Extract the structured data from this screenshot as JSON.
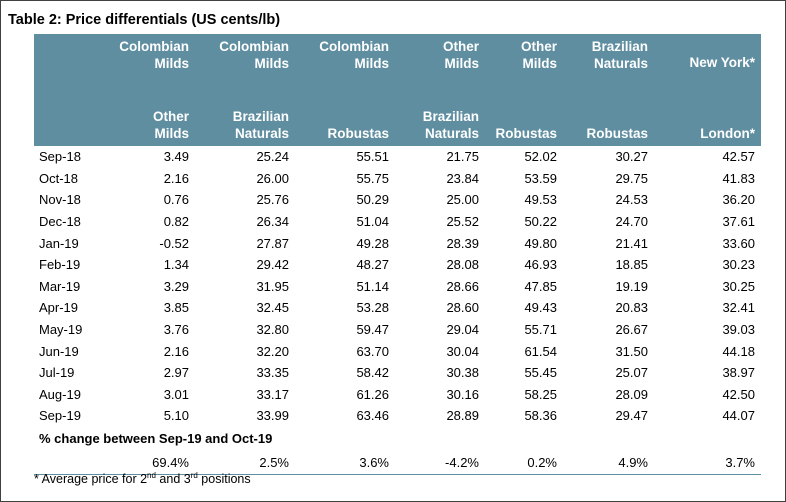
{
  "title": "Table 2: Price differentials (US cents/lb)",
  "header_top": [
    "",
    "Colombian Milds",
    "Colombian Milds",
    "Colombian Milds",
    "Other Milds",
    "Other Milds",
    "Brazilian Naturals",
    "New York*"
  ],
  "header_top_lines": [
    [
      "",
      ""
    ],
    [
      "Colombian",
      "Milds"
    ],
    [
      "Colombian",
      "Milds"
    ],
    [
      "Colombian",
      "Milds"
    ],
    [
      "Other",
      "Milds"
    ],
    [
      "Other",
      "Milds"
    ],
    [
      "Brazilian",
      "Naturals"
    ],
    [
      "New York*",
      ""
    ]
  ],
  "header_bottom_lines": [
    [
      "",
      ""
    ],
    [
      "Other",
      "Milds"
    ],
    [
      "Brazilian",
      "Naturals"
    ],
    [
      "",
      "Robustas"
    ],
    [
      "Brazilian",
      "Naturals"
    ],
    [
      "",
      "Robustas"
    ],
    [
      "",
      "Robustas"
    ],
    [
      "",
      "London*"
    ]
  ],
  "rows": [
    {
      "month": "Sep-18",
      "values": [
        "3.49",
        "25.24",
        "55.51",
        "21.75",
        "52.02",
        "30.27",
        "42.57"
      ]
    },
    {
      "month": "Oct-18",
      "values": [
        "2.16",
        "26.00",
        "55.75",
        "23.84",
        "53.59",
        "29.75",
        "41.83"
      ]
    },
    {
      "month": "Nov-18",
      "values": [
        "0.76",
        "25.76",
        "50.29",
        "25.00",
        "49.53",
        "24.53",
        "36.20"
      ]
    },
    {
      "month": "Dec-18",
      "values": [
        "0.82",
        "26.34",
        "51.04",
        "25.52",
        "50.22",
        "24.70",
        "37.61"
      ]
    },
    {
      "month": "Jan-19",
      "values": [
        "-0.52",
        "27.87",
        "49.28",
        "28.39",
        "49.80",
        "21.41",
        "33.60"
      ]
    },
    {
      "month": "Feb-19",
      "values": [
        "1.34",
        "29.42",
        "48.27",
        "28.08",
        "46.93",
        "18.85",
        "30.23"
      ]
    },
    {
      "month": "Mar-19",
      "values": [
        "3.29",
        "31.95",
        "51.14",
        "28.66",
        "47.85",
        "19.19",
        "30.25"
      ]
    },
    {
      "month": "Apr-19",
      "values": [
        "3.85",
        "32.45",
        "53.28",
        "28.60",
        "49.43",
        "20.83",
        "32.41"
      ]
    },
    {
      "month": "May-19",
      "values": [
        "3.76",
        "32.80",
        "59.47",
        "29.04",
        "55.71",
        "26.67",
        "39.03"
      ]
    },
    {
      "month": "Jun-19",
      "values": [
        "2.16",
        "32.20",
        "63.70",
        "30.04",
        "61.54",
        "31.50",
        "44.18"
      ]
    },
    {
      "month": "Jul-19",
      "values": [
        "2.97",
        "33.35",
        "58.42",
        "30.38",
        "55.45",
        "25.07",
        "38.97"
      ]
    },
    {
      "month": "Aug-19",
      "values": [
        "3.01",
        "33.17",
        "61.26",
        "30.16",
        "58.25",
        "28.09",
        "42.50"
      ]
    },
    {
      "month": "Sep-19",
      "values": [
        "5.10",
        "33.99",
        "63.46",
        "28.89",
        "58.36",
        "29.47",
        "44.07"
      ]
    }
  ],
  "pct_change_label": "% change between Sep-19 and Oct-19",
  "pct_change_values": [
    "69.4%",
    "2.5%",
    "3.6%",
    "-4.2%",
    "0.2%",
    "4.9%",
    "3.7%"
  ],
  "footnote": {
    "prefix": "* Average price for 2",
    "sup1": "nd",
    "mid": " and 3",
    "sup2": "rd",
    "suffix": " positions"
  },
  "colors": {
    "header_bg": "#5f8ea1",
    "header_text": "#ffffff"
  }
}
